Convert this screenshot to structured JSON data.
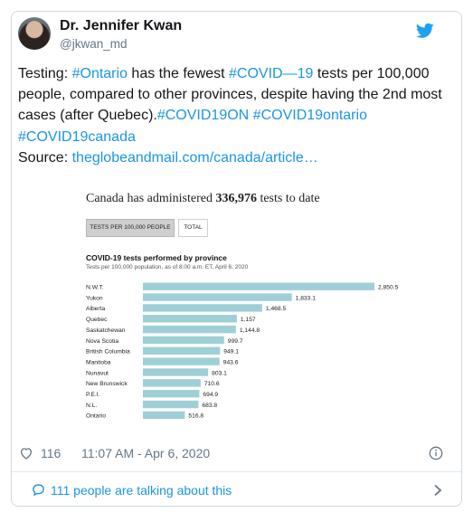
{
  "tweet": {
    "name": "Dr. Jennifer Kwan",
    "handle": "@jkwan_md",
    "text_parts": [
      {
        "text": "Testing: ",
        "link": false
      },
      {
        "text": "#Ontario",
        "link": true
      },
      {
        "text": " has the fewest ",
        "link": false
      },
      {
        "text": "#COVID—19",
        "link": true
      },
      {
        "text": " tests per 100,000 people, compared to other provinces, despite having the 2nd most cases (after Quebec).",
        "link": false
      },
      {
        "text": "#COVID19ON",
        "link": true
      },
      {
        "text": " ",
        "link": false
      },
      {
        "text": "#COVID19ontario",
        "link": true
      },
      {
        "text": " ",
        "link": false
      },
      {
        "text": "#COVID19canada",
        "link": true
      }
    ],
    "source_label": "Source: ",
    "source_link": "theglobeandmail.com/canada/article…",
    "likes": "116",
    "timestamp": "11:07 AM - Apr 6, 2020",
    "talking": "111 people are talking about this"
  },
  "icons": {
    "bird": "twitter-bird-icon",
    "heart": "heart-icon",
    "info": "info-icon",
    "talk": "speech-bubble-icon",
    "chevron": "chevron-right-icon"
  },
  "colors": {
    "link": "#1b95e0",
    "bar": "#9fcfd6",
    "muted": "#657786"
  },
  "media": {
    "headline_prefix": "Canada has administered ",
    "headline_number": "336,976",
    "headline_suffix": " tests to date",
    "tab_active": "TESTS PER 100,000 PEOPLE",
    "tab_inactive": "TOTAL"
  },
  "chart_data": {
    "type": "bar",
    "orientation": "horizontal",
    "title": "COVID-19 tests performed by province",
    "subtitle": "Tests per 100,000 population, as of 8:00 a.m. ET, April 6, 2020",
    "categories": [
      "N.W.T.",
      "Yukon",
      "Alberta",
      "Quebec",
      "Saskatchewan",
      "Nova Scotia",
      "British Columbia",
      "Manitoba",
      "Nunavut",
      "New Brunswick",
      "P.E.I.",
      "N.L.",
      "Ontario"
    ],
    "values": [
      2850.5,
      1833.1,
      1468.5,
      1157,
      1144.8,
      999.7,
      949.1,
      943.6,
      803.1,
      710.6,
      694.9,
      683.8,
      516.8
    ],
    "value_labels": [
      "2,850.5",
      "1,833.1",
      "1,468.5",
      "1,157",
      "1,144.8",
      "999.7",
      "949.1",
      "943.6",
      "803.1",
      "710.6",
      "694.9",
      "683.8",
      "516.8"
    ]
  }
}
